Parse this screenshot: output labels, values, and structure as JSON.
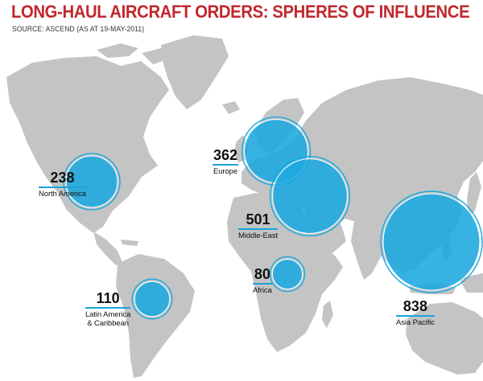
{
  "header": {
    "title": "LONG-HAUL AIRCRAFT ORDERS: SPHERES OF INFLUENCE",
    "source": "SOURCE: ASCEND (AS AT 19-MAY-2011)"
  },
  "colors": {
    "title": "#c1272d",
    "land": "#c4c4c4",
    "bubble": "#1ba9df",
    "bubble_ring": "#1ba9df",
    "underline": "#1aa4d8"
  },
  "regions": [
    {
      "id": "north-america",
      "value": "238",
      "label": "North America",
      "label2": ""
    },
    {
      "id": "europe",
      "value": "362",
      "label": "Europe",
      "label2": ""
    },
    {
      "id": "middle-east",
      "value": "501",
      "label": "Middle-East",
      "label2": ""
    },
    {
      "id": "africa",
      "value": "80",
      "label": "Africa",
      "label2": ""
    },
    {
      "id": "latin-america",
      "value": "110",
      "label": "Latin America",
      "label2": "& Caribbean"
    },
    {
      "id": "asia-pacific",
      "value": "838",
      "label": "Asia Pacific",
      "label2": ""
    }
  ]
}
